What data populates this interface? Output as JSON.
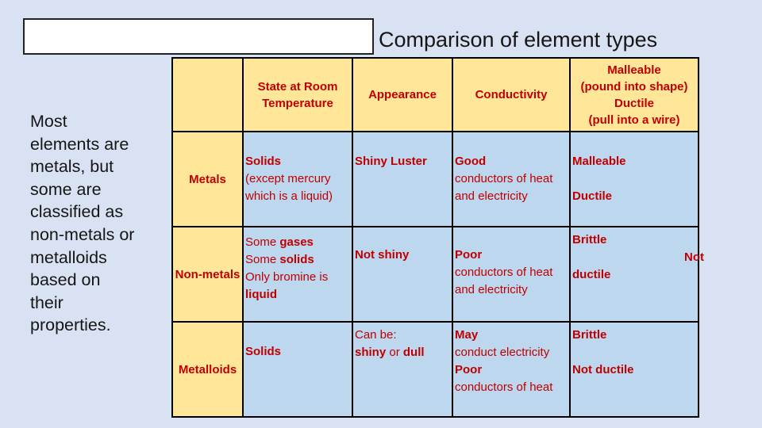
{
  "slide": {
    "title": "Comparison of element types",
    "intro_text": "Most\nelements are\nmetals, but\nsome are\nclassified as\nnon-metals or\nmetalloids\nbased on\ntheir\nproperties.",
    "colors": {
      "background": "#D9E2F3",
      "header_fill": "#FFE699",
      "body_fill": "#BDD7EE",
      "text_red": "#C00000",
      "border": "#000000"
    }
  },
  "table": {
    "header": [
      "",
      "State at Room\nTemperature",
      "Appearance",
      "Conductivity",
      "Malleable\n(pound into shape)\nDuctile\n(pull into a wire)"
    ],
    "rows": [
      {
        "label": "Metals",
        "cells": [
          {
            "pad": 26,
            "lines": [
              {
                "segs": [
                  [
                    "Solids",
                    1
                  ]
                ]
              },
              {
                "segs": [
                  [
                    "(except mercury",
                    0
                  ]
                ]
              },
              {
                "segs": [
                  [
                    "which is a liquid)",
                    0
                  ]
                ]
              }
            ]
          },
          {
            "pad": 26,
            "lines": [
              {
                "segs": [
                  [
                    "Shiny Luster",
                    1
                  ]
                ]
              }
            ]
          },
          {
            "pad": 26,
            "lines": [
              {
                "segs": [
                  [
                    "Good",
                    1
                  ]
                ]
              },
              {
                "segs": [
                  [
                    "conductors of heat",
                    0
                  ]
                ]
              },
              {
                "segs": [
                  [
                    "and electricity",
                    0
                  ]
                ]
              }
            ]
          },
          {
            "pad": 26,
            "lines": [
              {
                "segs": [
                  [
                    "Malleable",
                    1
                  ]
                ]
              },
              {
                "segs": []
              },
              {
                "segs": [
                  [
                    "Ductile",
                    1
                  ]
                ]
              }
            ]
          }
        ]
      },
      {
        "label": "Non-metals",
        "cells": [
          {
            "pad": 8,
            "lines": [
              {
                "segs": [
                  [
                    "Some ",
                    0
                  ],
                  [
                    "gases",
                    1
                  ]
                ]
              },
              {
                "segs": [
                  [
                    "Some ",
                    0
                  ],
                  [
                    "solids",
                    1
                  ]
                ]
              },
              {
                "segs": [
                  [
                    "Only bromine is",
                    0
                  ]
                ]
              },
              {
                "segs": [
                  [
                    "liquid",
                    1
                  ]
                ]
              }
            ]
          },
          {
            "pad": 24,
            "lines": [
              {
                "segs": [
                  [
                    "Not shiny",
                    1
                  ]
                ]
              }
            ]
          },
          {
            "pad": 24,
            "lines": [
              {
                "segs": [
                  [
                    "Poor",
                    1
                  ]
                ]
              },
              {
                "segs": [
                  [
                    "conductors of heat",
                    0
                  ]
                ]
              },
              {
                "segs": [
                  [
                    "and electricity",
                    0
                  ]
                ]
              }
            ]
          },
          {
            "pad": 5,
            "lines": [
              {
                "segs": [
                  [
                    "Brittle",
                    1
                  ]
                ]
              },
              {
                "segs": [
                  [
                    "Not",
                    1
                  ]
                ],
                "align": "right"
              },
              {
                "segs": [
                  [
                    "ductile",
                    1
                  ]
                ]
              }
            ]
          }
        ]
      },
      {
        "label": "Metalloids",
        "cells": [
          {
            "pad": 26,
            "lines": [
              {
                "segs": [
                  [
                    "Solids",
                    1
                  ]
                ]
              }
            ]
          },
          {
            "pad": 5,
            "lines": [
              {
                "segs": [
                  [
                    "Can be:",
                    0
                  ]
                ]
              },
              {
                "segs": [
                  [
                    "shiny",
                    1
                  ],
                  [
                    " or ",
                    0
                  ],
                  [
                    "dull",
                    1
                  ]
                ]
              }
            ]
          },
          {
            "pad": 5,
            "lines": [
              {
                "segs": [
                  [
                    "May",
                    1
                  ]
                ]
              },
              {
                "segs": [
                  [
                    "conduct electricity",
                    0
                  ]
                ]
              },
              {
                "segs": [
                  [
                    "Poor",
                    1
                  ]
                ]
              },
              {
                "segs": [
                  [
                    "conductors of heat",
                    0
                  ]
                ]
              }
            ]
          },
          {
            "pad": 5,
            "lines": [
              {
                "segs": [
                  [
                    "Brittle",
                    1
                  ]
                ]
              },
              {
                "segs": []
              },
              {
                "segs": [
                  [
                    "Not ductile",
                    1
                  ]
                ]
              }
            ]
          }
        ]
      }
    ]
  }
}
